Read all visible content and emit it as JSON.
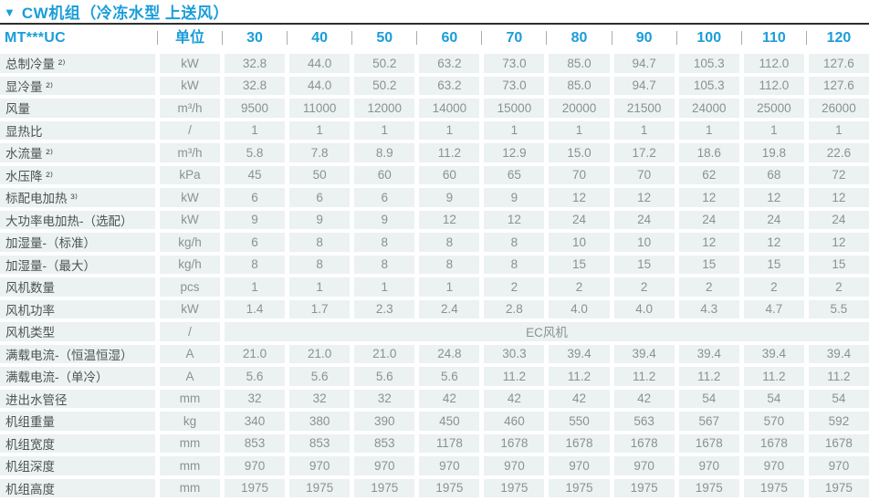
{
  "title": {
    "marker": "▼",
    "text": "CW机组（冷冻水型 上送风）"
  },
  "colors": {
    "accent_blue": "#1a9dd9",
    "cell_background": "#ebf2f1",
    "data_text": "#8c9091",
    "label_text": "#4e5152",
    "top_rule": "#2e2e2e"
  },
  "table": {
    "model_header": "MT***UC",
    "unit_header": "单位",
    "model_columns": [
      "30",
      "40",
      "50",
      "60",
      "70",
      "80",
      "90",
      "100",
      "110",
      "120"
    ],
    "rows": [
      {
        "label": "总制冷量 ²⁾",
        "unit": "kW",
        "values": [
          "32.8",
          "44.0",
          "50.2",
          "63.2",
          "73.0",
          "85.0",
          "94.7",
          "105.3",
          "112.0",
          "127.6"
        ]
      },
      {
        "label": "显冷量 ²⁾",
        "unit": "kW",
        "values": [
          "32.8",
          "44.0",
          "50.2",
          "63.2",
          "73.0",
          "85.0",
          "94.7",
          "105.3",
          "112.0",
          "127.6"
        ]
      },
      {
        "label": "风量",
        "unit": "m³/h",
        "values": [
          "9500",
          "11000",
          "12000",
          "14000",
          "15000",
          "20000",
          "21500",
          "24000",
          "25000",
          "26000"
        ]
      },
      {
        "label": "显热比",
        "unit": "/",
        "values": [
          "1",
          "1",
          "1",
          "1",
          "1",
          "1",
          "1",
          "1",
          "1",
          "1"
        ]
      },
      {
        "label": "水流量 ²⁾",
        "unit": "m³/h",
        "values": [
          "5.8",
          "7.8",
          "8.9",
          "11.2",
          "12.9",
          "15.0",
          "17.2",
          "18.6",
          "19.8",
          "22.6"
        ]
      },
      {
        "label": "水压降 ²⁾",
        "unit": "kPa",
        "values": [
          "45",
          "50",
          "60",
          "60",
          "65",
          "70",
          "70",
          "62",
          "68",
          "72"
        ]
      },
      {
        "label": "标配电加热 ³⁾",
        "unit": "kW",
        "values": [
          "6",
          "6",
          "6",
          "9",
          "9",
          "12",
          "12",
          "12",
          "12",
          "12"
        ]
      },
      {
        "label": "大功率电加热-（选配）",
        "unit": "kW",
        "values": [
          "9",
          "9",
          "9",
          "12",
          "12",
          "24",
          "24",
          "24",
          "24",
          "24"
        ]
      },
      {
        "label": "加湿量-（标准）",
        "unit": "kg/h",
        "values": [
          "6",
          "8",
          "8",
          "8",
          "8",
          "10",
          "10",
          "12",
          "12",
          "12"
        ]
      },
      {
        "label": "加湿量-（最大）",
        "unit": "kg/h",
        "values": [
          "8",
          "8",
          "8",
          "8",
          "8",
          "15",
          "15",
          "15",
          "15",
          "15"
        ]
      },
      {
        "label": "风机数量",
        "unit": "pcs",
        "values": [
          "1",
          "1",
          "1",
          "1",
          "2",
          "2",
          "2",
          "2",
          "2",
          "2"
        ]
      },
      {
        "label": "风机功率",
        "unit": "kW",
        "values": [
          "1.4",
          "1.7",
          "2.3",
          "2.4",
          "2.8",
          "4.0",
          "4.0",
          "4.3",
          "4.7",
          "5.5"
        ]
      },
      {
        "label": "风机类型",
        "unit": "/",
        "merged_value": "EC风机"
      },
      {
        "label": "满载电流-（恒温恒湿）",
        "unit": "A",
        "values": [
          "21.0",
          "21.0",
          "21.0",
          "24.8",
          "30.3",
          "39.4",
          "39.4",
          "39.4",
          "39.4",
          "39.4"
        ]
      },
      {
        "label": "满载电流-（单冷）",
        "unit": "A",
        "values": [
          "5.6",
          "5.6",
          "5.6",
          "5.6",
          "11.2",
          "11.2",
          "11.2",
          "11.2",
          "11.2",
          "11.2"
        ]
      },
      {
        "label": "进出水管径",
        "unit": "mm",
        "values": [
          "32",
          "32",
          "32",
          "42",
          "42",
          "42",
          "42",
          "54",
          "54",
          "54"
        ]
      },
      {
        "label": "机组重量",
        "unit": "kg",
        "values": [
          "340",
          "380",
          "390",
          "450",
          "460",
          "550",
          "563",
          "567",
          "570",
          "592"
        ]
      },
      {
        "label": "机组宽度",
        "unit": "mm",
        "values": [
          "853",
          "853",
          "853",
          "1178",
          "1678",
          "1678",
          "1678",
          "1678",
          "1678",
          "1678"
        ]
      },
      {
        "label": "机组深度",
        "unit": "mm",
        "values": [
          "970",
          "970",
          "970",
          "970",
          "970",
          "970",
          "970",
          "970",
          "970",
          "970"
        ]
      },
      {
        "label": "机组高度",
        "unit": "mm",
        "values": [
          "1975",
          "1975",
          "1975",
          "1975",
          "1975",
          "1975",
          "1975",
          "1975",
          "1975",
          "1975"
        ]
      }
    ]
  }
}
